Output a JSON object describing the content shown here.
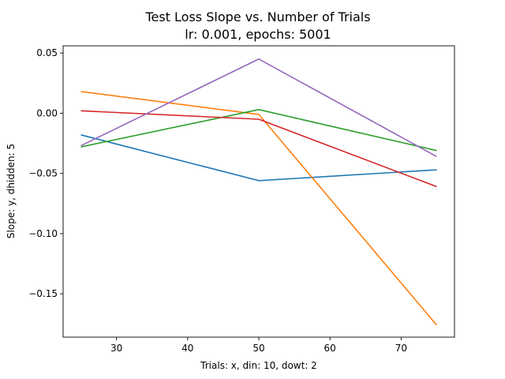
{
  "chart_data": {
    "type": "line",
    "title": "Test Loss Slope vs. Number of Trials",
    "subtitle": "lr: 0.001, epochs: 5001",
    "xlabel": "Trials: x, din: 10, dowt: 2",
    "ylabel": "Slope: y, dhidden: 5",
    "x": [
      25,
      50,
      75
    ],
    "xlim": [
      22.5,
      77.5
    ],
    "ylim": [
      -0.186,
      0.056
    ],
    "xticks": [
      30,
      40,
      50,
      60,
      70
    ],
    "yticks": [
      0.05,
      0.0,
      -0.05,
      -0.1,
      -0.15
    ],
    "ytick_labels": [
      "0.05",
      "0.00",
      "−0.05",
      "−0.10",
      "−0.15"
    ],
    "grid": false,
    "legend": false,
    "series": [
      {
        "color": "#1f77b4",
        "values": [
          -0.018,
          -0.056,
          -0.047
        ]
      },
      {
        "color": "#ff7f0e",
        "values": [
          0.018,
          -0.001,
          -0.176
        ]
      },
      {
        "color": "#2ca02c",
        "values": [
          -0.028,
          0.003,
          -0.031
        ]
      },
      {
        "color": "#d62728",
        "values": [
          0.002,
          -0.005,
          -0.061
        ]
      },
      {
        "color": "#9467bd",
        "values": [
          -0.027,
          0.045,
          -0.036
        ]
      }
    ]
  }
}
